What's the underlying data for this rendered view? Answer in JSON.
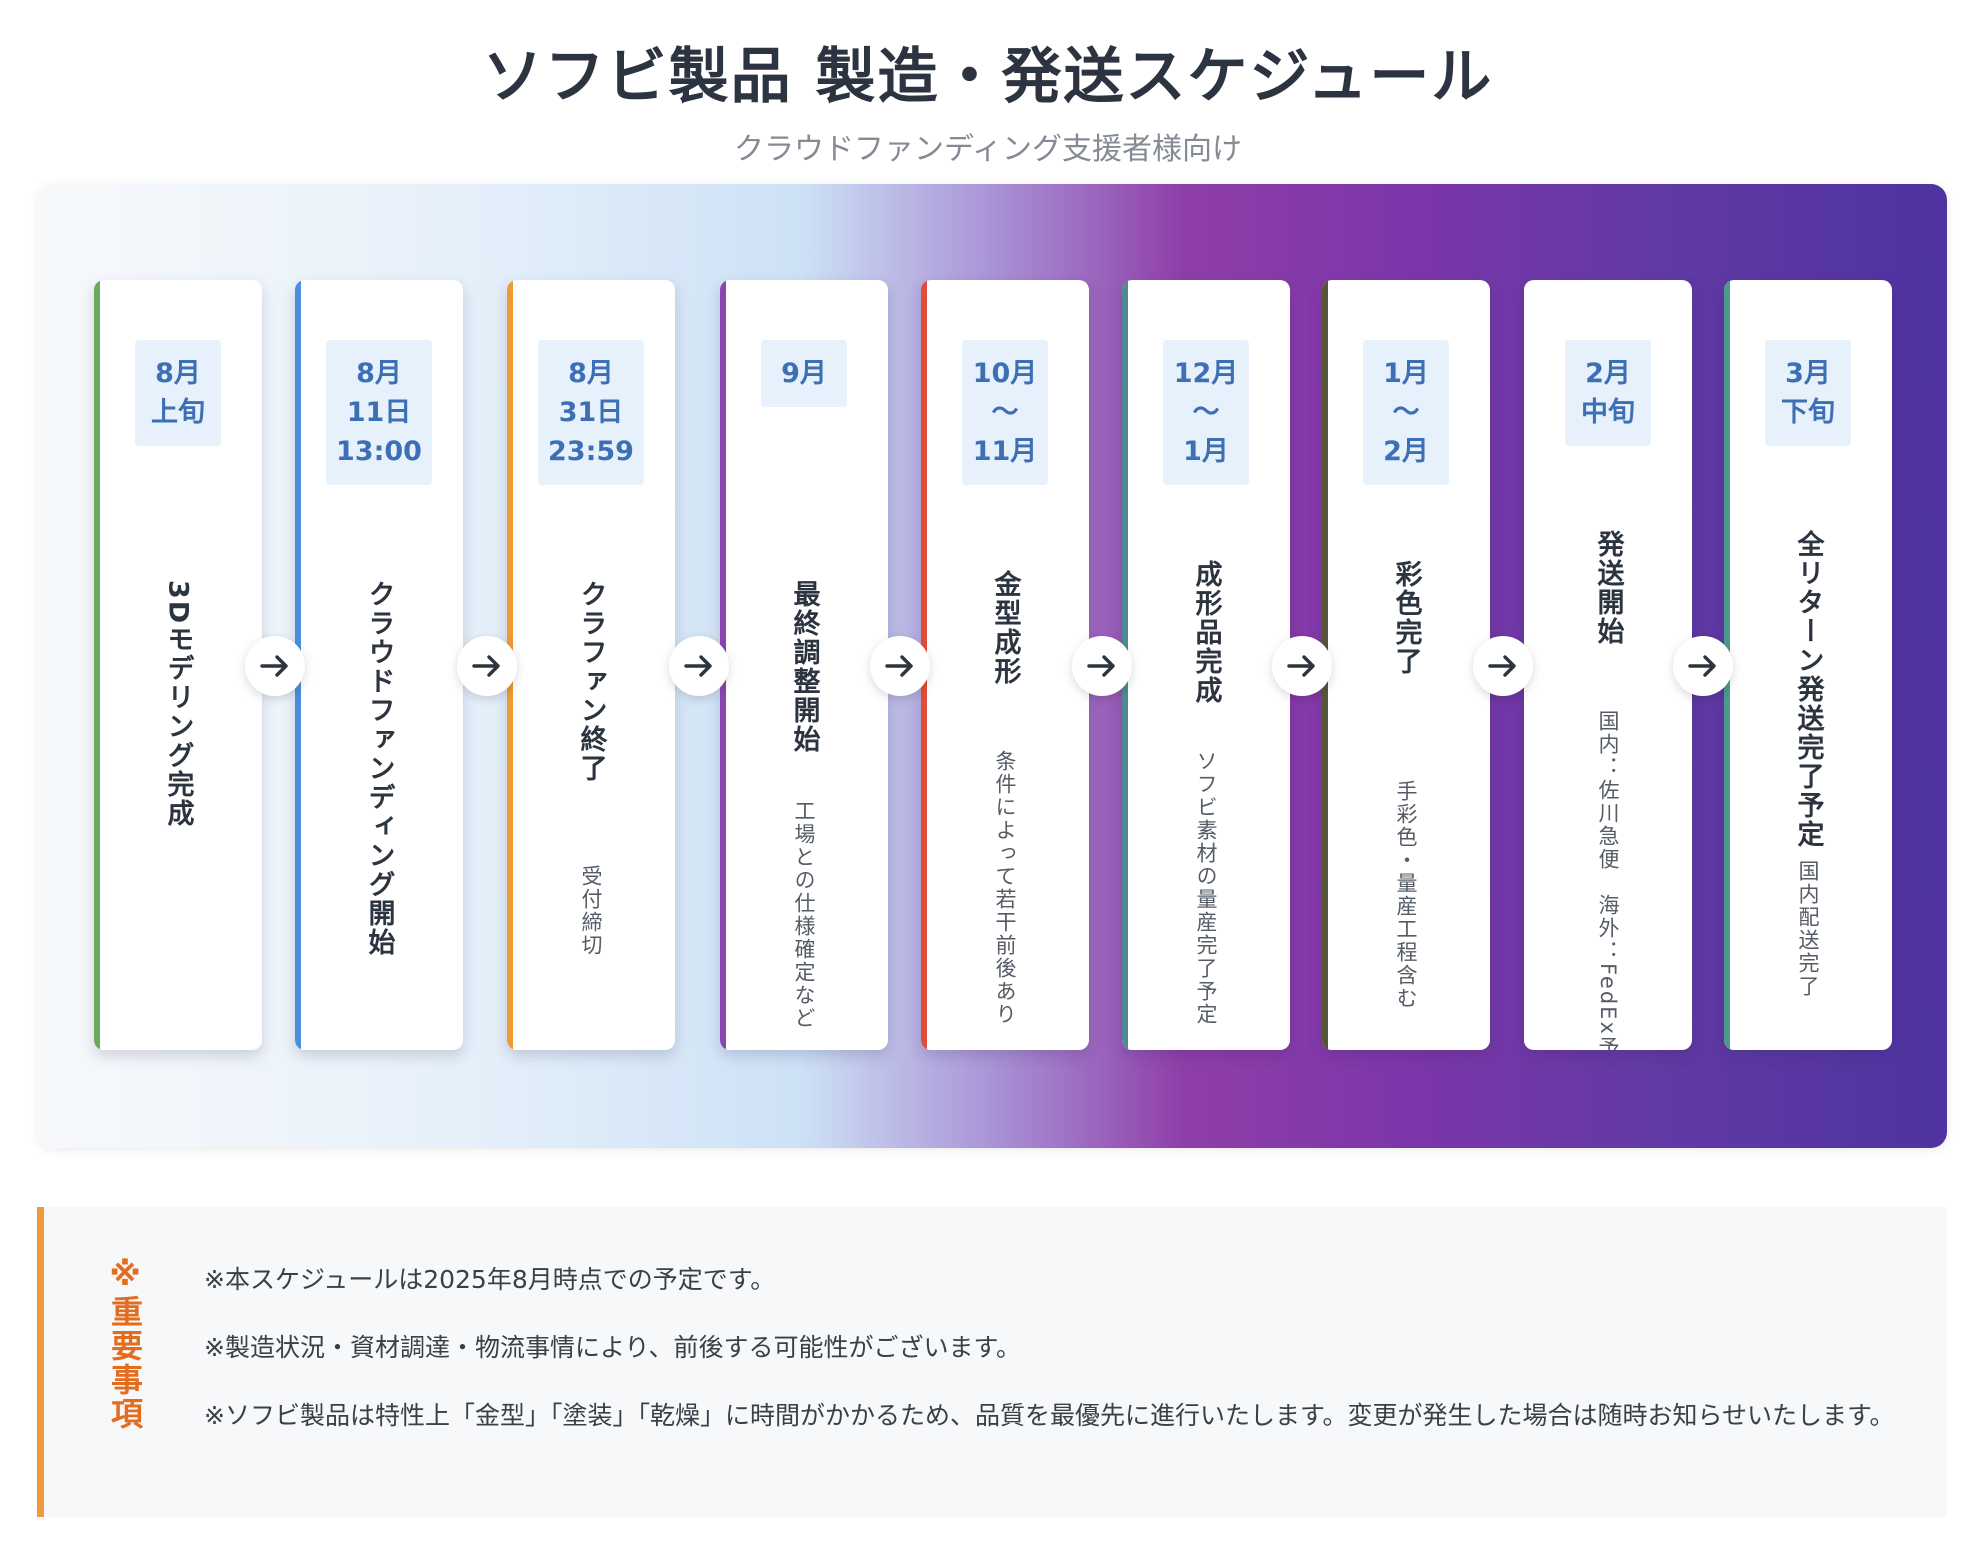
{
  "header": {
    "title": "ソフビ製品 製造・発送スケジュール",
    "subtitle": "クラウドファンディング支援者様向け"
  },
  "colors": {
    "date_text": "#3d6fb5",
    "date_bg": "#e7f1fb",
    "note_accent": "#ef9a3c",
    "note_label": "#e36d1e"
  },
  "steps": [
    {
      "date": [
        "8月",
        "上旬"
      ],
      "title": "3Dモデリング完成",
      "desc": "",
      "color": "#6aaa5a"
    },
    {
      "date": [
        "8月",
        "11日",
        "13:00"
      ],
      "title": "クラウドファンディング開始",
      "desc": "",
      "color": "#4a8fdc"
    },
    {
      "date": [
        "8月",
        "31日",
        "23:59"
      ],
      "title": "クラファン終了",
      "desc": "受付締切",
      "color": "#ee9a35"
    },
    {
      "date": [
        "9月"
      ],
      "title": "最終調整開始",
      "desc": "工場との仕様確定など",
      "color": "#8a45b0"
    },
    {
      "date": [
        "10月",
        "～",
        "11月"
      ],
      "title": "金型成形",
      "desc": "条件によって若干前後あり",
      "color": "#e04d3a"
    },
    {
      "date": [
        "12月",
        "～",
        "1月"
      ],
      "title": "成形品完成",
      "desc": "ソフビ素材の量産完了予定",
      "color": "#4f8a93"
    },
    {
      "date": [
        "1月",
        "～",
        "2月"
      ],
      "title": "彩色完了",
      "desc": "手彩色・量産工程含む",
      "color": "#57553a"
    },
    {
      "date": [
        "2月",
        "中旬"
      ],
      "title": "発送開始",
      "desc": "国内：佐川急便　海外：FedEx予定",
      "color": "#ffffff"
    },
    {
      "date": [
        "3月",
        "下旬"
      ],
      "title": "全リターン発送完了予定",
      "desc": "国内配送完了",
      "color": "#4b9a8f"
    }
  ],
  "notes": {
    "label": "※重要事項",
    "lines": [
      "※本スケジュールは2025年8月時点での予定です。",
      "※製造状況・資材調達・物流事情により、前後する可能性がございます。",
      "※ソフビ製品は特性上「金型」「塗装」「乾燥」に時間がかかるため、品質を最優先に進行いたします。変更が発生した場合は随時お知らせいたします。"
    ]
  },
  "icons": {
    "step_connector": "arrow-right-icon"
  }
}
